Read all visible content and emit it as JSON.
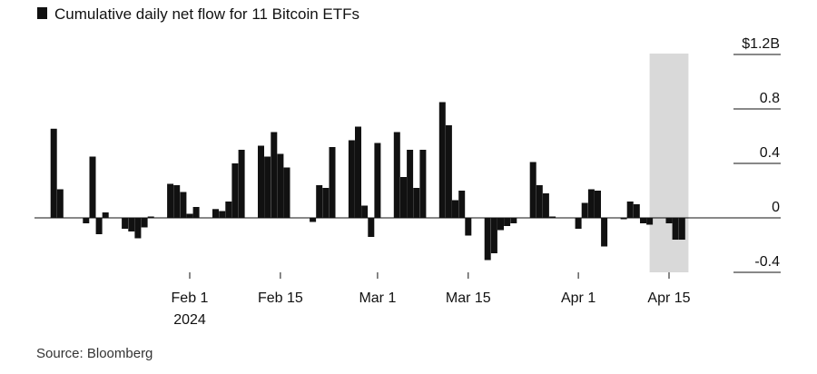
{
  "chart_data": {
    "type": "bar",
    "title": "Cumulative daily net flow for 11 Bitcoin ETFs",
    "source": "Source: Bloomberg",
    "y_unit": "billion USD",
    "ylim": [
      -0.4,
      1.2
    ],
    "y_ticks": [
      {
        "value": 1.2,
        "label": "$1.2B"
      },
      {
        "value": 0.8,
        "label": "0.8"
      },
      {
        "value": 0.4,
        "label": "0.4"
      },
      {
        "value": 0,
        "label": "0"
      },
      {
        "value": -0.4,
        "label": "-0.4"
      }
    ],
    "x_ticks": [
      {
        "date": "2024-02-01",
        "label": "Feb 1",
        "sublabel": "2024"
      },
      {
        "date": "2024-02-15",
        "label": "Feb 15",
        "sublabel": ""
      },
      {
        "date": "2024-03-01",
        "label": "Mar 1",
        "sublabel": ""
      },
      {
        "date": "2024-03-15",
        "label": "Mar 15",
        "sublabel": ""
      },
      {
        "date": "2024-04-01",
        "label": "Apr 1",
        "sublabel": ""
      },
      {
        "date": "2024-04-15",
        "label": "Apr 15",
        "sublabel": ""
      }
    ],
    "highlight_range": [
      "2024-04-12",
      "2024-04-18"
    ],
    "bar_color": "#111111",
    "highlight_color": "#d9d9d9",
    "grid": false,
    "x": [
      "2024-01-11",
      "2024-01-12",
      "2024-01-16",
      "2024-01-17",
      "2024-01-18",
      "2024-01-19",
      "2024-01-22",
      "2024-01-23",
      "2024-01-24",
      "2024-01-25",
      "2024-01-26",
      "2024-01-29",
      "2024-01-30",
      "2024-01-31",
      "2024-02-01",
      "2024-02-02",
      "2024-02-05",
      "2024-02-06",
      "2024-02-07",
      "2024-02-08",
      "2024-02-09",
      "2024-02-12",
      "2024-02-13",
      "2024-02-14",
      "2024-02-15",
      "2024-02-16",
      "2024-02-20",
      "2024-02-21",
      "2024-02-22",
      "2024-02-23",
      "2024-02-26",
      "2024-02-27",
      "2024-02-28",
      "2024-02-29",
      "2024-03-01",
      "2024-03-04",
      "2024-03-05",
      "2024-03-06",
      "2024-03-07",
      "2024-03-08",
      "2024-03-11",
      "2024-03-12",
      "2024-03-13",
      "2024-03-14",
      "2024-03-15",
      "2024-03-18",
      "2024-03-19",
      "2024-03-20",
      "2024-03-21",
      "2024-03-22",
      "2024-03-25",
      "2024-03-26",
      "2024-03-27",
      "2024-03-28",
      "2024-04-01",
      "2024-04-02",
      "2024-04-03",
      "2024-04-04",
      "2024-04-05",
      "2024-04-08",
      "2024-04-09",
      "2024-04-10",
      "2024-04-11",
      "2024-04-12",
      "2024-04-15",
      "2024-04-16",
      "2024-04-17"
    ],
    "values": [
      0.655,
      0.21,
      -0.04,
      0.45,
      -0.12,
      0.04,
      -0.08,
      -0.1,
      -0.15,
      -0.07,
      0.01,
      0.25,
      0.24,
      0.19,
      0.03,
      0.08,
      0.065,
      0.05,
      0.12,
      0.4,
      0.5,
      0.53,
      0.45,
      0.63,
      0.47,
      0.37,
      -0.03,
      0.24,
      0.22,
      0.52,
      0.57,
      0.67,
      0.09,
      -0.14,
      0.55,
      0.63,
      0.3,
      0.5,
      0.22,
      0.5,
      0.85,
      0.68,
      0.13,
      0.2,
      -0.13,
      -0.31,
      -0.26,
      -0.09,
      -0.06,
      -0.04,
      0.41,
      0.24,
      0.18,
      0.01,
      -0.08,
      0.11,
      0.21,
      0.2,
      -0.21,
      -0.01,
      0.12,
      0.1,
      -0.04,
      -0.05,
      -0.04,
      -0.16,
      -0.16
    ]
  }
}
